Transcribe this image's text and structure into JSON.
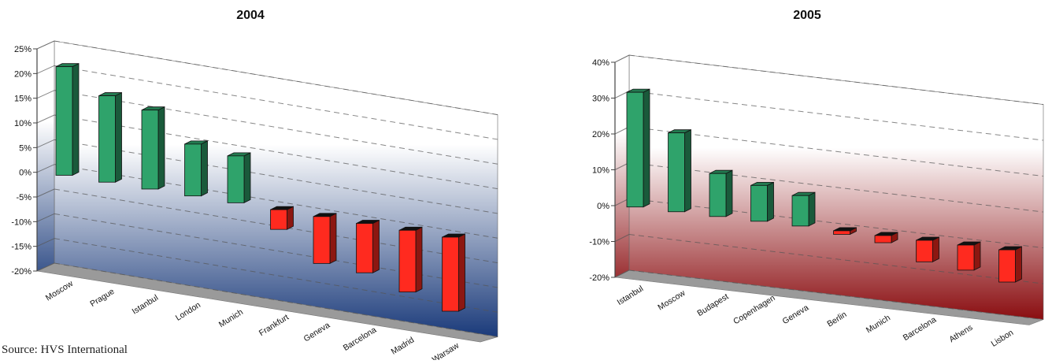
{
  "source": "Source: HVS International",
  "colors": {
    "positive": "#2fa36b",
    "negative": "#ff2a1f",
    "panel1_gradient_top": "#ffffff",
    "panel1_gradient_bottom": "#1a3a7a",
    "panel2_gradient_top": "#ffffff",
    "panel2_gradient_bottom": "#8a0d10",
    "floor": "#9a9a9a"
  },
  "chart_data": [
    {
      "type": "bar",
      "title": "2004",
      "categories": [
        "Moscow",
        "Prague",
        "Istanbul",
        "London",
        "Munich",
        "Frankfurt",
        "Geneva",
        "Barcelona",
        "Madrid",
        "Warsaw"
      ],
      "values": [
        22,
        17.5,
        16,
        10.5,
        9.5,
        -4,
        -9.5,
        -10,
        -12.5,
        -15
      ],
      "ylim": [
        -20,
        25
      ],
      "yticks": [
        "25%",
        "20%",
        "15%",
        "10%",
        "5%",
        "0%",
        "-5%",
        "-10%",
        "-15%",
        "-20%"
      ],
      "xlabel": "",
      "ylabel": "",
      "grid": true,
      "style": "3d"
    },
    {
      "type": "bar",
      "title": "2005",
      "categories": [
        "Istanbul",
        "Moscow",
        "Budapest",
        "Copenhagen",
        "Geneva",
        "Berlin",
        "Munich",
        "Barcelona",
        "Athens",
        "Lisbon"
      ],
      "values": [
        32,
        22,
        12,
        10,
        8.5,
        -1,
        -2,
        -6,
        -7,
        -9
      ],
      "ylim": [
        -20,
        40
      ],
      "yticks": [
        "40%",
        "30%",
        "20%",
        "10%",
        "0%",
        "-10%",
        "-20%"
      ],
      "xlabel": "",
      "ylabel": "",
      "grid": true,
      "style": "3d"
    }
  ]
}
